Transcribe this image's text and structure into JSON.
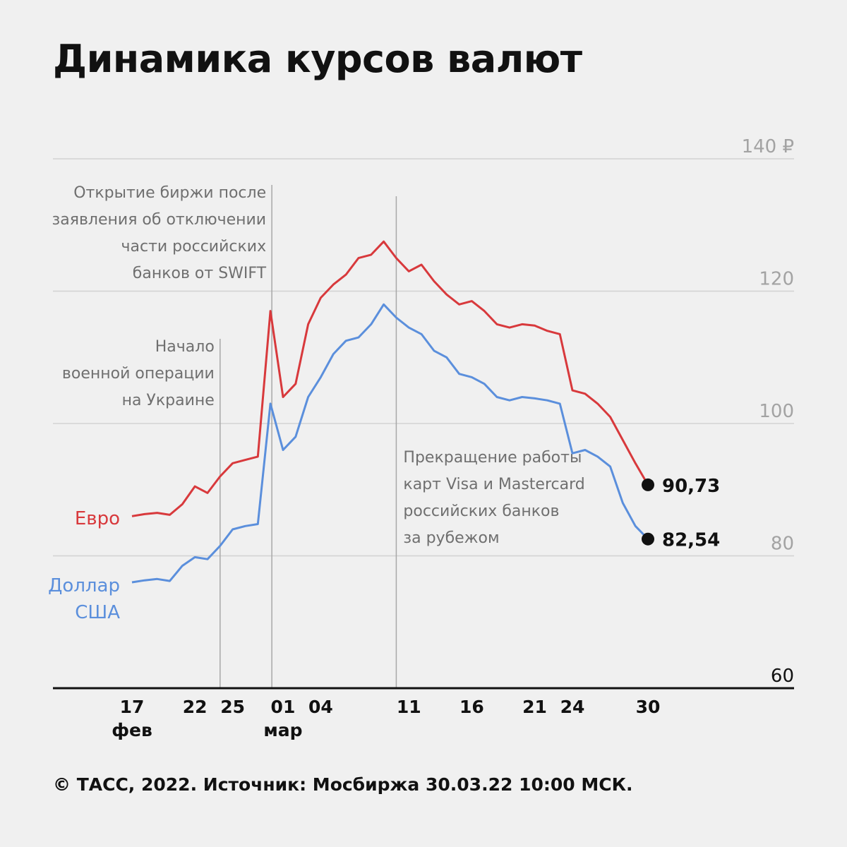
{
  "title": "Динамика курсов валют",
  "footer": "© ТАСС, 2022. Источник: Мосбиржа 30.03.22 10:00 МСК.",
  "colors": {
    "euro": "#d8393c",
    "usd": "#5b8fdc",
    "grid": "#d2d2d2",
    "event_line": "#a8a8a8",
    "axis": "#111111"
  },
  "chart_data": {
    "type": "line",
    "title": "Динамика курсов валют",
    "xlabel": "",
    "ylabel": "",
    "ylim": [
      60,
      140
    ],
    "y_ticks": [
      "140 ₽",
      "120",
      "100",
      "80",
      "60"
    ],
    "y_tick_values": [
      140,
      120,
      100,
      80,
      60
    ],
    "x_ticks": [
      {
        "date": "2022-02-17",
        "day": "17",
        "month": "фев"
      },
      {
        "date": "2022-02-22",
        "day": "22",
        "month": ""
      },
      {
        "date": "2022-02-25",
        "day": "25",
        "month": ""
      },
      {
        "date": "2022-03-01",
        "day": "01",
        "month": "мар"
      },
      {
        "date": "2022-03-04",
        "day": "04",
        "month": ""
      },
      {
        "date": "2022-03-11",
        "day": "11",
        "month": ""
      },
      {
        "date": "2022-03-16",
        "day": "16",
        "month": ""
      },
      {
        "date": "2022-03-21",
        "day": "21",
        "month": ""
      },
      {
        "date": "2022-03-24",
        "day": "24",
        "month": ""
      },
      {
        "date": "2022-03-30",
        "day": "30",
        "month": ""
      }
    ],
    "grid": true,
    "series": [
      {
        "name": "Евро",
        "color": "#d8393c",
        "end_label": "90,73",
        "points": [
          [
            "2022-02-17",
            86.0
          ],
          [
            "2022-02-18",
            86.3
          ],
          [
            "2022-02-19",
            86.5
          ],
          [
            "2022-02-20",
            86.2
          ],
          [
            "2022-02-21",
            87.8
          ],
          [
            "2022-02-22",
            90.5
          ],
          [
            "2022-02-23",
            89.5
          ],
          [
            "2022-02-24",
            92.0
          ],
          [
            "2022-02-25",
            94.0
          ],
          [
            "2022-02-26",
            94.5
          ],
          [
            "2022-02-27",
            95.0
          ],
          [
            "2022-02-28",
            117.0
          ],
          [
            "2022-03-01",
            104.0
          ],
          [
            "2022-03-02",
            106.0
          ],
          [
            "2022-03-03",
            115.0
          ],
          [
            "2022-03-04",
            119.0
          ],
          [
            "2022-03-05",
            121.0
          ],
          [
            "2022-03-06",
            122.5
          ],
          [
            "2022-03-07",
            125.0
          ],
          [
            "2022-03-08",
            125.5
          ],
          [
            "2022-03-09",
            127.5
          ],
          [
            "2022-03-10",
            125.0
          ],
          [
            "2022-03-11",
            123.0
          ],
          [
            "2022-03-12",
            124.0
          ],
          [
            "2022-03-13",
            121.5
          ],
          [
            "2022-03-14",
            119.5
          ],
          [
            "2022-03-15",
            118.0
          ],
          [
            "2022-03-16",
            118.5
          ],
          [
            "2022-03-17",
            117.0
          ],
          [
            "2022-03-18",
            115.0
          ],
          [
            "2022-03-19",
            114.5
          ],
          [
            "2022-03-20",
            115.0
          ],
          [
            "2022-03-21",
            114.8
          ],
          [
            "2022-03-22",
            114.0
          ],
          [
            "2022-03-23",
            113.5
          ],
          [
            "2022-03-24",
            105.0
          ],
          [
            "2022-03-25",
            104.5
          ],
          [
            "2022-03-26",
            103.0
          ],
          [
            "2022-03-27",
            101.0
          ],
          [
            "2022-03-28",
            97.5
          ],
          [
            "2022-03-29",
            94.0
          ],
          [
            "2022-03-30",
            90.73
          ]
        ]
      },
      {
        "name": "Доллар США",
        "color": "#5b8fdc",
        "end_label": "82,54",
        "points": [
          [
            "2022-02-17",
            76.0
          ],
          [
            "2022-02-18",
            76.3
          ],
          [
            "2022-02-19",
            76.5
          ],
          [
            "2022-02-20",
            76.2
          ],
          [
            "2022-02-21",
            78.5
          ],
          [
            "2022-02-22",
            79.8
          ],
          [
            "2022-02-23",
            79.5
          ],
          [
            "2022-02-24",
            81.5
          ],
          [
            "2022-02-25",
            84.0
          ],
          [
            "2022-02-26",
            84.5
          ],
          [
            "2022-02-27",
            84.8
          ],
          [
            "2022-02-28",
            103.0
          ],
          [
            "2022-03-01",
            96.0
          ],
          [
            "2022-03-02",
            98.0
          ],
          [
            "2022-03-03",
            104.0
          ],
          [
            "2022-03-04",
            107.0
          ],
          [
            "2022-03-05",
            110.5
          ],
          [
            "2022-03-06",
            112.5
          ],
          [
            "2022-03-07",
            113.0
          ],
          [
            "2022-03-08",
            115.0
          ],
          [
            "2022-03-09",
            118.0
          ],
          [
            "2022-03-10",
            116.0
          ],
          [
            "2022-03-11",
            114.5
          ],
          [
            "2022-03-12",
            113.5
          ],
          [
            "2022-03-13",
            111.0
          ],
          [
            "2022-03-14",
            110.0
          ],
          [
            "2022-03-15",
            107.5
          ],
          [
            "2022-03-16",
            107.0
          ],
          [
            "2022-03-17",
            106.0
          ],
          [
            "2022-03-18",
            104.0
          ],
          [
            "2022-03-19",
            103.5
          ],
          [
            "2022-03-20",
            104.0
          ],
          [
            "2022-03-21",
            103.8
          ],
          [
            "2022-03-22",
            103.5
          ],
          [
            "2022-03-23",
            103.0
          ],
          [
            "2022-03-24",
            95.5
          ],
          [
            "2022-03-25",
            96.0
          ],
          [
            "2022-03-26",
            95.0
          ],
          [
            "2022-03-27",
            93.5
          ],
          [
            "2022-03-28",
            88.0
          ],
          [
            "2022-03-29",
            84.5
          ],
          [
            "2022-03-30",
            82.54
          ]
        ]
      }
    ],
    "annotations": [
      {
        "date": "2022-02-24",
        "lines": [
          "Начало",
          "военной операции",
          "на Украине"
        ]
      },
      {
        "date": "2022-02-28",
        "lines": [
          "Открытие биржи после",
          "заявления об отключении",
          "части российских",
          "банков от SWIFT"
        ]
      },
      {
        "date": "2022-03-10",
        "lines": [
          "Прекращение работы",
          "карт Visa и Mastercard",
          "российских банков",
          "за рубежом"
        ]
      }
    ]
  }
}
